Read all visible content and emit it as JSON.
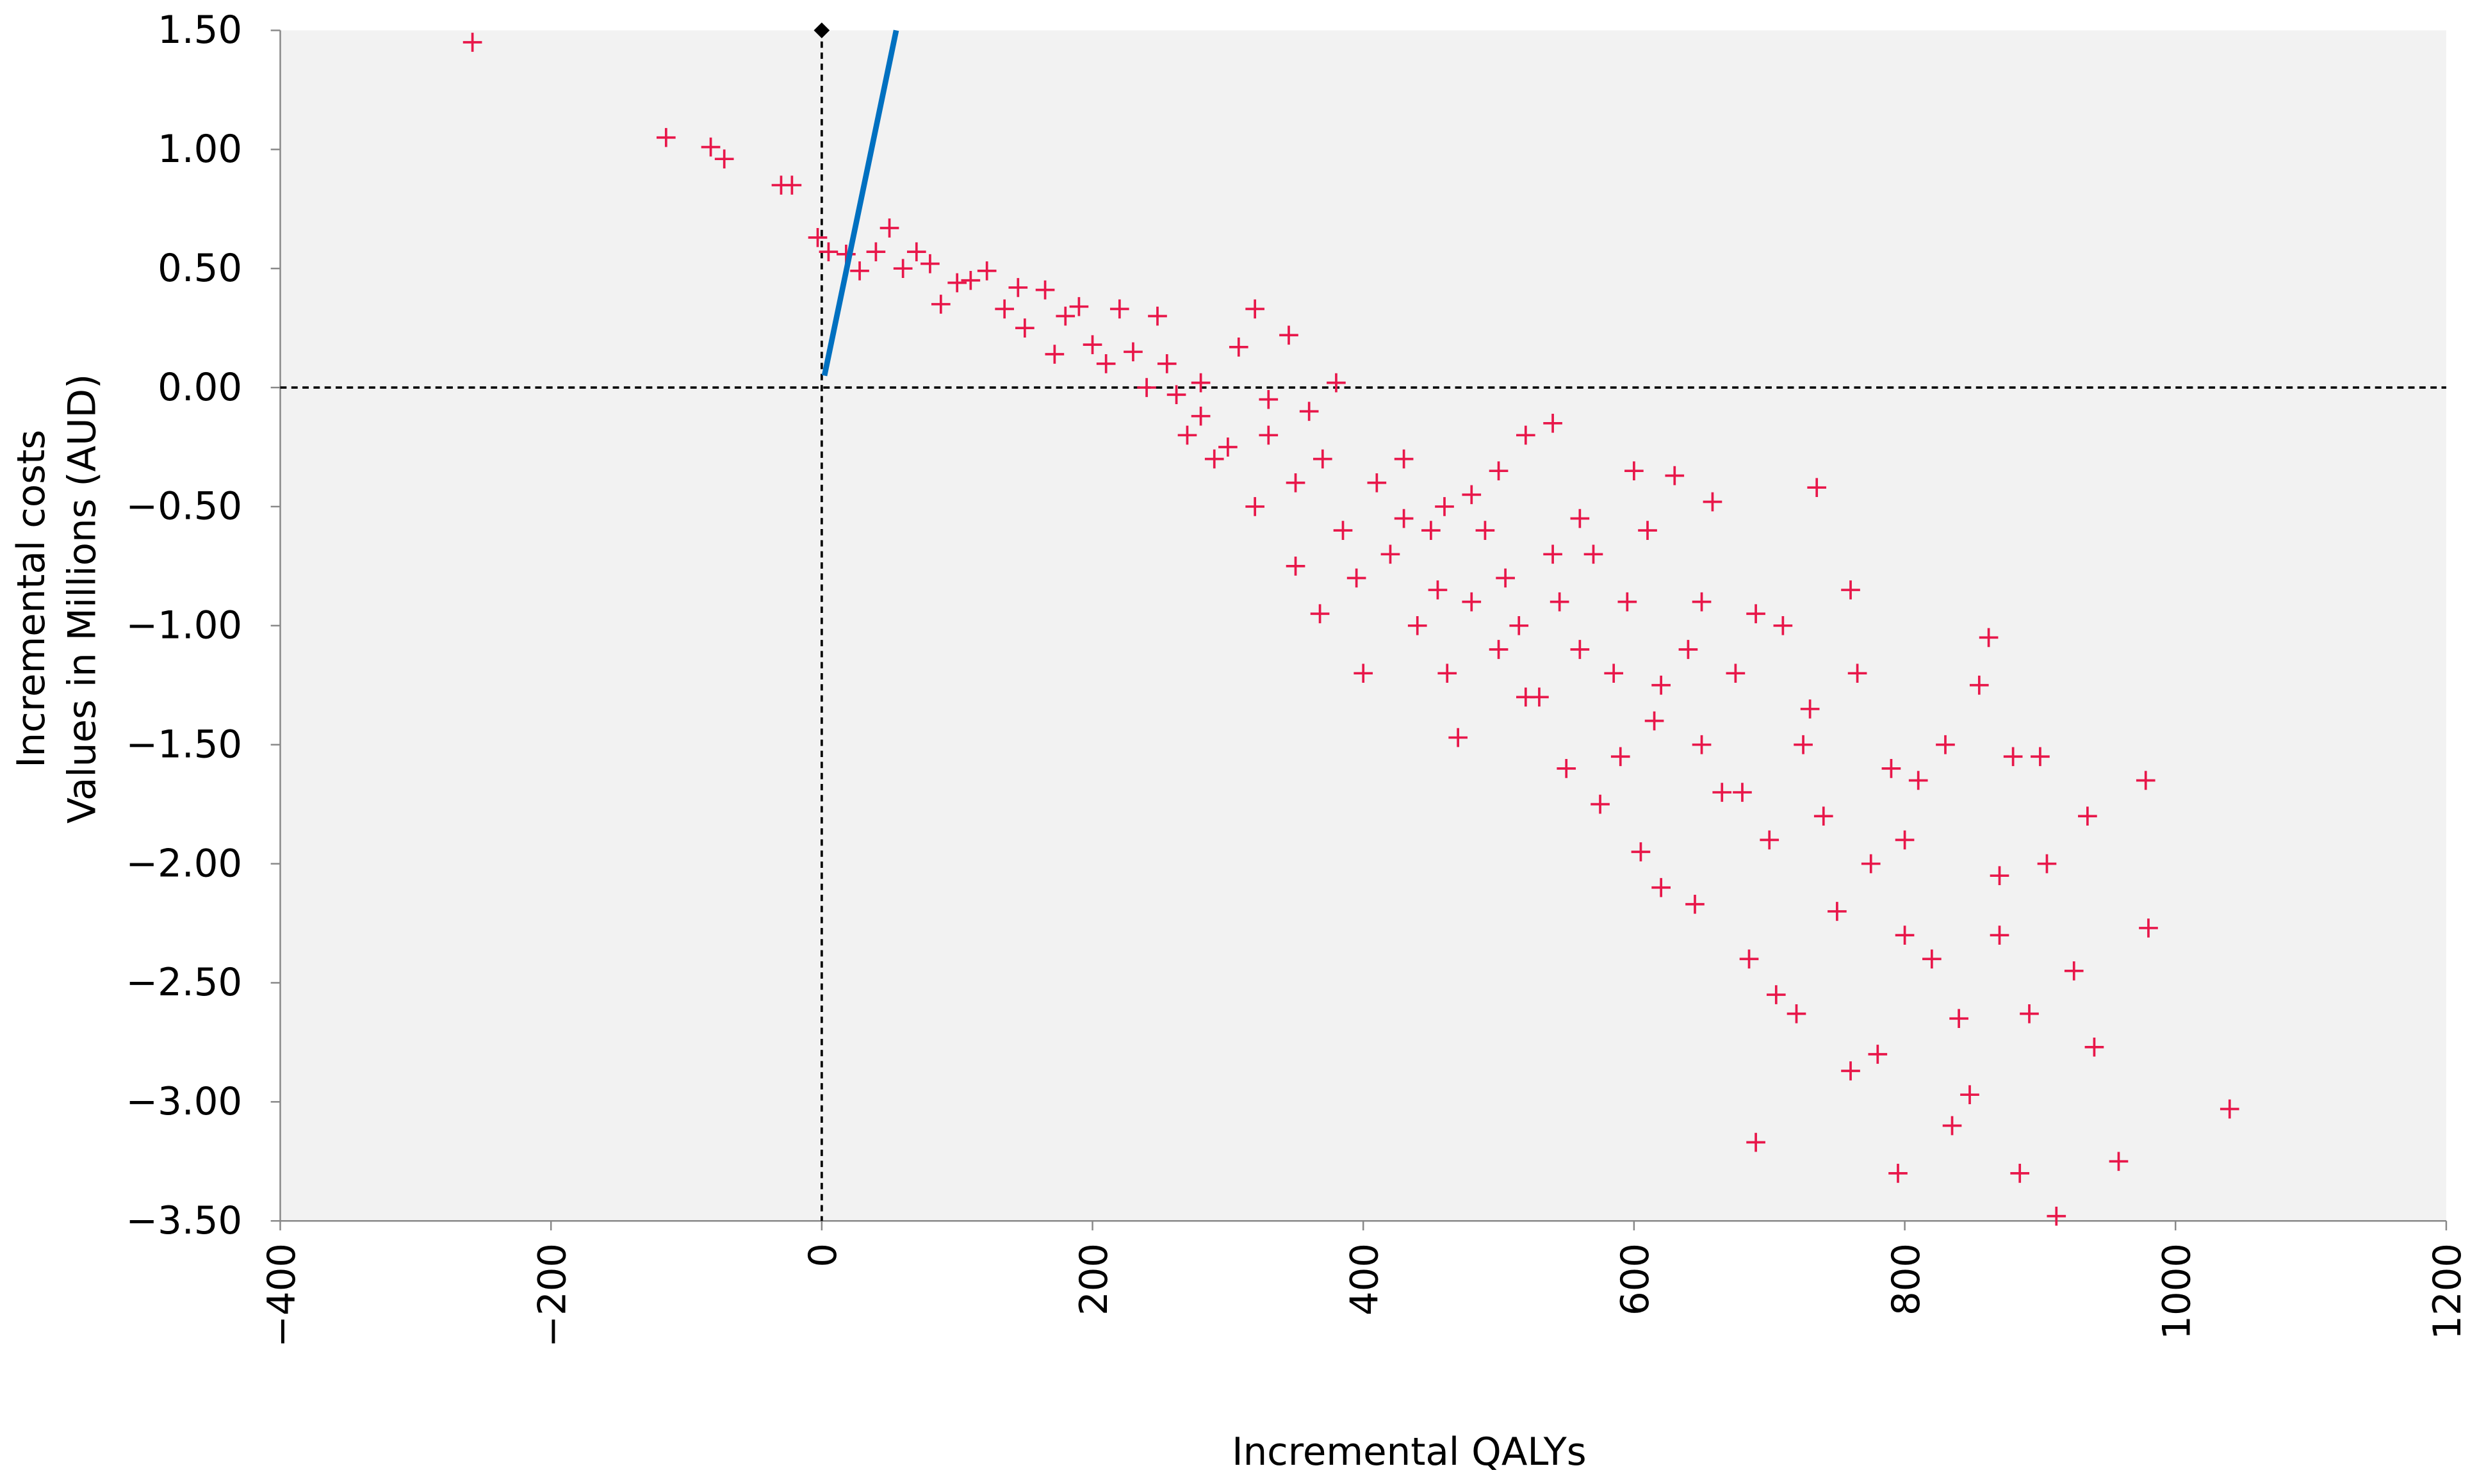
{
  "chart_data": {
    "type": "scatter",
    "x_label": "Incremental QALYs",
    "y_label": [
      "Incremental costs",
      "Values in Millions (AUD)"
    ],
    "color": "#e8174a",
    "x": [
      -258,
      -115,
      -82,
      -72,
      -30,
      -22,
      -3,
      5,
      18,
      28,
      40,
      50,
      60,
      70,
      80,
      88,
      100,
      110,
      122,
      135,
      145,
      150,
      165,
      172,
      180,
      190,
      200,
      210,
      220,
      230,
      248,
      255,
      262,
      270,
      280,
      290,
      300,
      308,
      320,
      320,
      330,
      345,
      350,
      360,
      368,
      380,
      385,
      395,
      400,
      410,
      420,
      430,
      440,
      450,
      455,
      462,
      470,
      480,
      490,
      500,
      505,
      515,
      520,
      530,
      540,
      545,
      550,
      560,
      570,
      575,
      585,
      595,
      600,
      605,
      615,
      620,
      630,
      640,
      645,
      650,
      658,
      665,
      675,
      685,
      690,
      700,
      705,
      710,
      720,
      725,
      735,
      740,
      750,
      760,
      765,
      775,
      780,
      790,
      795,
      800,
      810,
      820,
      830,
      835,
      840,
      848,
      855,
      862,
      870,
      880,
      885,
      892,
      905,
      912,
      925,
      935,
      940,
      958,
      978,
      980,
      1040,
      900,
      760,
      690,
      610,
      560,
      480,
      430,
      370,
      330,
      280,
      240,
      350,
      460,
      520,
      590,
      650,
      730,
      800,
      870,
      680,
      620,
      540,
      500
    ],
    "values": [
      1.45,
      1.05,
      1.01,
      0.96,
      0.85,
      0.85,
      0.63,
      0.57,
      0.56,
      0.49,
      0.57,
      0.67,
      0.5,
      0.57,
      0.52,
      0.35,
      0.44,
      0.45,
      0.49,
      0.33,
      0.42,
      0.25,
      0.41,
      0.14,
      0.3,
      0.34,
      0.18,
      0.1,
      0.33,
      0.15,
      0.3,
      0.1,
      -0.03,
      -0.2,
      -0.12,
      -0.3,
      -0.25,
      0.17,
      0.33,
      -0.5,
      -0.2,
      0.22,
      -0.4,
      -0.1,
      -0.95,
      0.02,
      -0.6,
      -0.8,
      -1.2,
      -0.4,
      -0.7,
      -0.55,
      -1.0,
      -0.6,
      -0.85,
      -1.2,
      -1.47,
      -0.9,
      -0.6,
      -1.1,
      -0.8,
      -1.0,
      -0.2,
      -1.3,
      -0.15,
      -0.9,
      -1.6,
      -1.1,
      -0.7,
      -1.75,
      -1.2,
      -0.9,
      -0.35,
      -1.95,
      -1.4,
      -2.1,
      -0.37,
      -1.1,
      -2.17,
      -1.5,
      -0.48,
      -1.7,
      -1.2,
      -2.4,
      -3.17,
      -1.9,
      -2.55,
      -1.0,
      -2.63,
      -1.5,
      -0.42,
      -1.8,
      -2.2,
      -2.87,
      -1.2,
      -2.0,
      -2.8,
      -1.6,
      -3.3,
      -2.3,
      -1.65,
      -2.4,
      -1.5,
      -3.1,
      -2.65,
      -2.97,
      -1.25,
      -1.05,
      -2.05,
      -1.55,
      -3.3,
      -2.63,
      -2.0,
      -3.48,
      -2.45,
      -1.8,
      -2.77,
      -3.25,
      -1.65,
      -2.27,
      -3.03,
      -1.55,
      -0.85,
      -0.95,
      -0.6,
      -0.55,
      -0.45,
      -0.3,
      -0.3,
      -0.05,
      0.02,
      0.0,
      -0.75,
      -0.5,
      -1.3,
      -1.55,
      -0.9,
      -1.35,
      -1.9,
      -2.3,
      -1.7,
      -1.25,
      -0.7,
      -0.35
    ],
    "xlim": [
      -400,
      1200
    ],
    "ylim": [
      -3.5,
      1.5
    ],
    "xticks": [
      {
        "value": -400,
        "label": "−400"
      },
      {
        "value": -200,
        "label": "−200"
      },
      0,
      200,
      400,
      600,
      800,
      1000,
      1200
    ],
    "yticks": [
      {
        "value": 1.5,
        "label": "1.50"
      },
      {
        "value": 1.0,
        "label": "1.00"
      },
      {
        "value": 0.5,
        "label": "0.50"
      },
      {
        "value": 0,
        "label": "0.00"
      },
      {
        "value": -0.5,
        "label": "−0.50"
      },
      {
        "value": -1.0,
        "label": "−1.00"
      },
      {
        "value": -1.5,
        "label": "−1.50"
      },
      {
        "value": -2.0,
        "label": "−2.00"
      },
      {
        "value": -2.5,
        "label": "−2.50"
      },
      {
        "value": -3.0,
        "label": "−3.00"
      },
      {
        "value": -3.5,
        "label": "−3.50"
      }
    ],
    "ref_lines": {
      "x": 0,
      "y": 0
    },
    "threshold": {
      "color": "#0070c0",
      "x": [
        2,
        55
      ],
      "y": [
        0.05,
        1.5
      ]
    },
    "marker_point": {
      "x": 0,
      "y": 1.5
    }
  }
}
